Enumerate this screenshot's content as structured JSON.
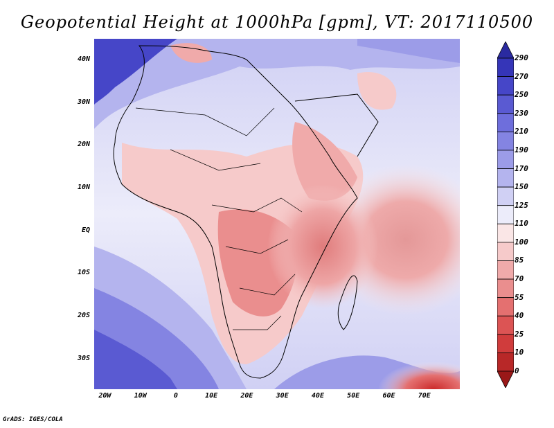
{
  "title": "Geopotential Height at 1000hPa [gpm], VT: 2017110500",
  "credit": "GrADS: IGES/COLA",
  "map": {
    "region": "Africa and western Indian Ocean",
    "lon_range": [
      -23,
      80
    ],
    "lat_range": [
      -37,
      45
    ],
    "lat_ticks": [
      {
        "label": "40N",
        "lat": 40
      },
      {
        "label": "30N",
        "lat": 30
      },
      {
        "label": "20N",
        "lat": 20
      },
      {
        "label": "10N",
        "lat": 10
      },
      {
        "label": "EQ",
        "lat": 0
      },
      {
        "label": "10S",
        "lat": -10
      },
      {
        "label": "20S",
        "lat": -20
      },
      {
        "label": "30S",
        "lat": -30
      }
    ],
    "lon_ticks": [
      {
        "label": "20W",
        "lon": -20
      },
      {
        "label": "10W",
        "lon": -10
      },
      {
        "label": "0",
        "lon": 0
      },
      {
        "label": "10E",
        "lon": 10
      },
      {
        "label": "20E",
        "lon": 20
      },
      {
        "label": "30E",
        "lon": 30
      },
      {
        "label": "40E",
        "lon": 40
      },
      {
        "label": "50E",
        "lon": 50
      },
      {
        "label": "60E",
        "lon": 60
      },
      {
        "label": "70E",
        "lon": 70
      }
    ]
  },
  "colorbar": {
    "levels": [
      "290",
      "270",
      "250",
      "230",
      "210",
      "190",
      "170",
      "150",
      "125",
      "110",
      "100",
      "85",
      "70",
      "55",
      "40",
      "25",
      "10",
      "0"
    ],
    "colors": [
      "#2a2aa0",
      "#3535b8",
      "#4646c8",
      "#5a5ad2",
      "#6e6edc",
      "#8484e2",
      "#9c9ce8",
      "#b4b4ee",
      "#d0d0f4",
      "#ececfa",
      "#fae6e6",
      "#f6caca",
      "#f0aaaa",
      "#ea8e8e",
      "#e47070",
      "#dc5454",
      "#d03c3c",
      "#b82828",
      "#9a1818"
    ]
  },
  "field": {
    "low_height_regions": [
      "East Africa highlands",
      "Horn of Africa",
      "Arabian Sea / Indian Ocean",
      "Southern Africa interior",
      "Sahel"
    ],
    "high_height_regions": [
      "Mediterranean / Middle East",
      "North Atlantic",
      "Southern Ocean"
    ]
  }
}
